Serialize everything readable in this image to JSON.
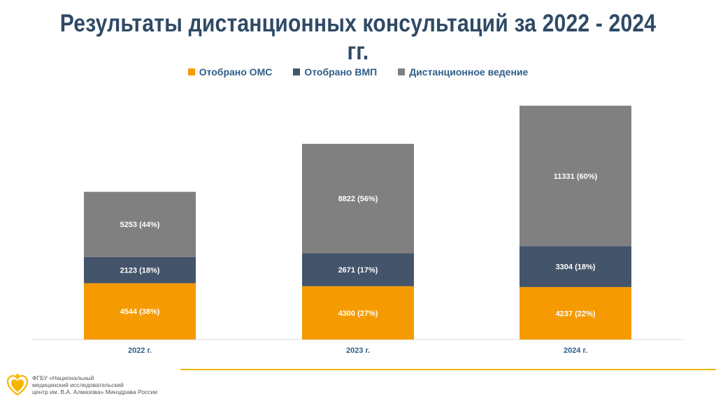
{
  "title": "Результаты дистанционных консультаций за 2022 - 2024 гг.",
  "legend": [
    {
      "label": "Отобрано ОМС",
      "color": "#f59a00"
    },
    {
      "label": "Отобрано ВМП",
      "color": "#44546a"
    },
    {
      "label": "Дистанционное ведение",
      "color": "#808080"
    }
  ],
  "chart_data": {
    "type": "bar",
    "stacked": true,
    "categories": [
      "2022 г.",
      "2023 г.",
      "2024 г."
    ],
    "series": [
      {
        "name": "Отобрано ОМС",
        "color": "#f59a00",
        "values": [
          4544,
          4300,
          4237
        ],
        "labels": [
          "4544 (38%)",
          "4300 (27%)",
          "4237 (22%)"
        ]
      },
      {
        "name": "Отобрано ВМП",
        "color": "#44546a",
        "values": [
          2123,
          2671,
          3304
        ],
        "labels": [
          "2123 (18%)",
          "2671 (17%)",
          "3304 (18%)"
        ]
      },
      {
        "name": "Дистанционное ведение",
        "color": "#808080",
        "values": [
          5253,
          8822,
          11331
        ],
        "labels": [
          "5253 (44%)",
          "8822 (56%)",
          "11331 (60%)"
        ]
      }
    ],
    "legend_position": "top"
  },
  "footer": {
    "lines": [
      "ФГБУ «Национальный",
      "медицинский исследовательский",
      "центр им. В.А. Алмазова» Минздрава России"
    ],
    "logo_icon": "heart-logo-icon",
    "accent_color": "#f7b500"
  }
}
